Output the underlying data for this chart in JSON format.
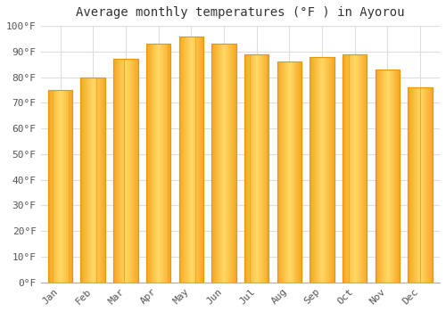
{
  "title": "Average monthly temperatures (°F ) in Ayorou",
  "months": [
    "Jan",
    "Feb",
    "Mar",
    "Apr",
    "May",
    "Jun",
    "Jul",
    "Aug",
    "Sep",
    "Oct",
    "Nov",
    "Dec"
  ],
  "values": [
    75,
    80,
    87,
    93,
    96,
    93,
    89,
    86,
    88,
    89,
    83,
    76
  ],
  "bar_color_left": "#F5A623",
  "bar_color_center": "#FFD966",
  "bar_color_right": "#F5A623",
  "bar_edge_color": "#E8960A",
  "ylim": [
    0,
    100
  ],
  "yticks": [
    0,
    10,
    20,
    30,
    40,
    50,
    60,
    70,
    80,
    90,
    100
  ],
  "ytick_labels": [
    "0°F",
    "10°F",
    "20°F",
    "30°F",
    "40°F",
    "50°F",
    "60°F",
    "70°F",
    "80°F",
    "90°F",
    "100°F"
  ],
  "background_color": "#FFFFFF",
  "plot_bg_color": "#FFFFFF",
  "grid_color": "#DDDDDD",
  "title_fontsize": 10,
  "tick_fontsize": 8,
  "bar_width": 0.75,
  "tick_color": "#555555"
}
